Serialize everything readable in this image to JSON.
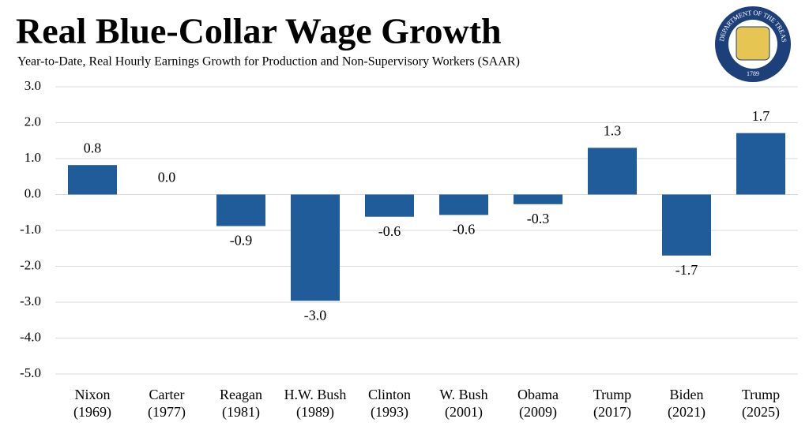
{
  "chart_data": {
    "type": "bar",
    "title": "Real Blue-Collar Wage Growth",
    "subtitle": "Year-to-Date, Real Hourly Earnings Growth for Production and Non-Supervisory Workers (SAAR)",
    "categories": [
      "Nixon (1969)",
      "Carter (1977)",
      "Reagan (1981)",
      "H.W. Bush (1989)",
      "Clinton (1993)",
      "W. Bush (2001)",
      "Obama (2009)",
      "Trump (2017)",
      "Biden (2021)",
      "Trump (2025)"
    ],
    "values": [
      0.82,
      0,
      -0.88,
      -2.96,
      -0.62,
      -0.57,
      -0.27,
      1.3,
      -1.7,
      1.71
    ],
    "value_labels": [
      "0.8",
      "0.0",
      "-0.9",
      "-3.0",
      "-0.6",
      "-0.6",
      "-0.3",
      "1.3",
      "-1.7",
      "1.7"
    ],
    "color": "#1f5c99",
    "ylim": [
      -5,
      3
    ],
    "yticks": [
      {
        "value": 3,
        "label": "3.0"
      },
      {
        "value": 2,
        "label": "2.0"
      },
      {
        "value": 1,
        "label": "1.0"
      },
      {
        "value": 0,
        "label": "0.0"
      },
      {
        "value": -1,
        "label": "-1.0"
      },
      {
        "value": -2,
        "label": "-2.0"
      },
      {
        "value": -3,
        "label": "-3.0"
      },
      {
        "value": -4,
        "label": "-4.0"
      },
      {
        "value": -5,
        "label": "-5.0"
      }
    ],
    "grid": true
  },
  "logo": {
    "ring_text": "THE DEPARTMENT OF THE TREASURY",
    "year": "1789"
  }
}
